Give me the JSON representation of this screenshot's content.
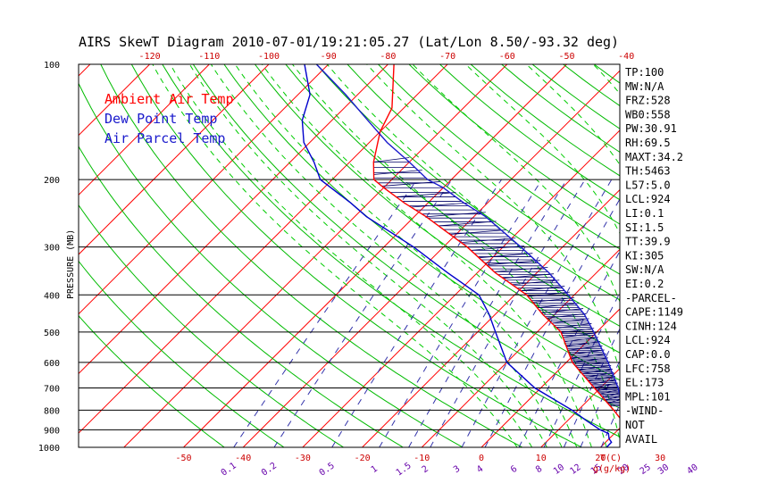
{
  "chart_data": {
    "type": "line",
    "title": "AIRS SkewT Diagram 2010-07-01/19:21:05.27 (Lat/Lon 8.50/-93.32 deg)",
    "ylabel": "PRESSURE (MB)",
    "xlabel_unit": "T(C)",
    "mixing_ratio_unit": "g(g/kg)",
    "pressure_ticks": [
      "100",
      "200",
      "300",
      "400",
      "500",
      "600",
      "700",
      "800",
      "900",
      "1000"
    ],
    "pressure_levels": [
      100,
      200,
      300,
      400,
      500,
      600,
      700,
      800,
      900,
      1000
    ],
    "bottom_temp_ticks": [
      "-50",
      "-40",
      "-30",
      "-20",
      "-10",
      "0",
      "10",
      "20",
      "30"
    ],
    "bottom_temp_values": [
      -50,
      -40,
      -30,
      -20,
      -10,
      0,
      10,
      20,
      30
    ],
    "top_temp_ticks": [
      "-120",
      "-110",
      "-100",
      "-90",
      "-80",
      "-70",
      "-60",
      "-50",
      "-40"
    ],
    "top_temp_values": [
      -120,
      -110,
      -100,
      -90,
      -80,
      -70,
      -60,
      -50,
      -40
    ],
    "mixing_ratio_ticks": [
      "0.1",
      "0.2",
      "0.5",
      "1",
      "1.5",
      "2",
      "3",
      "4",
      "6",
      "8",
      "10",
      "12",
      "15",
      "20",
      "25",
      "30",
      "40"
    ],
    "mixing_ratio_values": [
      0.1,
      0.2,
      0.5,
      1,
      1.5,
      2,
      3,
      4,
      6,
      8,
      10,
      12,
      15,
      20,
      25,
      30,
      40
    ],
    "legend": [
      {
        "label": "Ambient Air Temp",
        "color": "#ff0000"
      },
      {
        "label": "Dew Point Temp",
        "color": "#0000cc"
      },
      {
        "label": "Air Parcel Temp",
        "color": "#1a1acc"
      }
    ],
    "colors": {
      "isotherm": "#ff0000",
      "dry_adiabat": "#00bb00",
      "moist_adiabat": "#00cc00",
      "mixing_ratio": "#3333aa",
      "isobar": "#000000",
      "cape_hatch": "#000066"
    },
    "series": [
      {
        "name": "Ambient Air Temp",
        "color": "#ff0000",
        "points": [
          [
            1000,
            27
          ],
          [
            950,
            26
          ],
          [
            920,
            23
          ],
          [
            900,
            21
          ],
          [
            850,
            19
          ],
          [
            800,
            16
          ],
          [
            700,
            9
          ],
          [
            600,
            1
          ],
          [
            500,
            -6
          ],
          [
            450,
            -12
          ],
          [
            400,
            -18
          ],
          [
            350,
            -27
          ],
          [
            300,
            -36
          ],
          [
            250,
            -48
          ],
          [
            230,
            -54
          ],
          [
            210,
            -60
          ],
          [
            200,
            -63
          ],
          [
            180,
            -66
          ],
          [
            150,
            -70
          ],
          [
            130,
            -72
          ],
          [
            100,
            -79
          ]
        ]
      },
      {
        "name": "Dew Point Temp",
        "color": "#0000cc",
        "points": [
          [
            1000,
            21
          ],
          [
            970,
            21
          ],
          [
            950,
            20
          ],
          [
            920,
            19
          ],
          [
            900,
            17
          ],
          [
            850,
            13
          ],
          [
            800,
            9
          ],
          [
            700,
            -1
          ],
          [
            600,
            -10
          ],
          [
            500,
            -17
          ],
          [
            450,
            -21
          ],
          [
            400,
            -26
          ],
          [
            350,
            -35
          ],
          [
            300,
            -45
          ],
          [
            250,
            -58
          ],
          [
            230,
            -63
          ],
          [
            200,
            -72
          ],
          [
            180,
            -76
          ],
          [
            160,
            -81
          ],
          [
            140,
            -85
          ],
          [
            120,
            -88
          ],
          [
            100,
            -94
          ]
        ]
      },
      {
        "name": "Air Parcel Temp",
        "color": "#1a1acc",
        "points": [
          [
            1000,
            27
          ],
          [
            950,
            24
          ],
          [
            924,
            22
          ],
          [
            900,
            21.3
          ],
          [
            850,
            19.5
          ],
          [
            800,
            17.5
          ],
          [
            700,
            13
          ],
          [
            600,
            7
          ],
          [
            500,
            -0.5
          ],
          [
            450,
            -5
          ],
          [
            400,
            -11
          ],
          [
            350,
            -18
          ],
          [
            300,
            -27
          ],
          [
            250,
            -38
          ],
          [
            230,
            -44
          ],
          [
            210,
            -50
          ],
          [
            200,
            -54
          ],
          [
            180,
            -60
          ],
          [
            160,
            -67
          ],
          [
            140,
            -74
          ],
          [
            120,
            -82
          ],
          [
            100,
            -92
          ]
        ]
      }
    ]
  },
  "side_panel": [
    "TP:100",
    "MW:N/A",
    "FRZ:528",
    "WB0:558",
    "PW:30.91",
    "RH:69.5",
    "MAXT:34.2",
    "TH:5463",
    "L57:5.0",
    "LCL:924",
    "LI:0.1",
    "SI:1.5",
    "TT:39.9",
    "KI:305",
    "SW:N/A",
    "EI:0.2",
    "-PARCEL-",
    "CAPE:1149",
    "CINH:124",
    "LCL:924",
    "CAP:0.0",
    "LFC:758",
    "EL:173",
    "MPL:101",
    "-WIND-",
    "NOT",
    "AVAIL"
  ]
}
